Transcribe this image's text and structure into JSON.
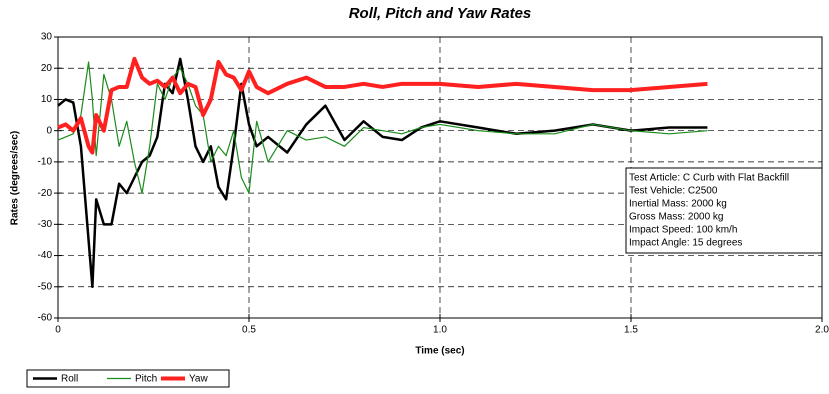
{
  "chart_data": {
    "type": "line",
    "title": "Roll, Pitch and Yaw Rates",
    "x_label": "Time (sec)",
    "y_label": "Rates (degrees/sec)",
    "x": [
      0,
      0.02,
      0.04,
      0.06,
      0.08,
      0.09,
      0.1,
      0.12,
      0.14,
      0.16,
      0.18,
      0.2,
      0.22,
      0.24,
      0.26,
      0.28,
      0.3,
      0.32,
      0.34,
      0.36,
      0.38,
      0.4,
      0.42,
      0.44,
      0.46,
      0.48,
      0.5,
      0.52,
      0.55,
      0.6,
      0.65,
      0.7,
      0.75,
      0.8,
      0.85,
      0.9,
      0.95,
      1.0,
      1.1,
      1.2,
      1.3,
      1.4,
      1.5,
      1.6,
      1.7
    ],
    "series": [
      {
        "name": "Roll",
        "color": "#000000",
        "width": 2.5,
        "values": [
          8,
          10,
          9,
          -5,
          -35,
          -50,
          -22,
          -30,
          -30,
          -17,
          -20,
          -15,
          -10,
          -8,
          -2,
          15,
          12,
          23,
          10,
          -5,
          -10,
          -5,
          -18,
          -22,
          -5,
          15,
          2,
          -5,
          -2,
          -7,
          2,
          8,
          -3,
          3,
          -2,
          -3,
          1,
          3,
          1,
          -1,
          0,
          2,
          0,
          1,
          1
        ]
      },
      {
        "name": "Pitch",
        "color": "#1a8c1a",
        "width": 1.2,
        "values": [
          -3,
          -2,
          -1,
          5,
          22,
          10,
          -8,
          18,
          10,
          -5,
          3,
          -10,
          -20,
          -5,
          15,
          10,
          17,
          20,
          15,
          8,
          5,
          -10,
          -5,
          -8,
          0,
          -15,
          -20,
          3,
          -10,
          0,
          -3,
          -2,
          -5,
          1,
          0,
          -1,
          1,
          2,
          0,
          -1,
          -1,
          2,
          0,
          -1,
          0
        ]
      },
      {
        "name": "Yaw",
        "color": "#ff2020",
        "width": 4,
        "values": [
          1,
          2,
          0,
          4,
          -5,
          -7,
          5,
          0,
          13,
          14,
          14,
          23,
          17,
          15,
          16,
          14,
          17,
          12,
          15,
          14,
          5,
          10,
          22,
          18,
          17,
          13,
          19,
          14,
          12,
          15,
          17,
          14,
          14,
          15,
          14,
          15,
          15,
          15,
          14,
          15,
          14,
          13,
          13,
          14,
          15
        ]
      }
    ],
    "xlim": [
      0,
      2
    ],
    "xticks": [
      0,
      0.5,
      {
        "value": 1,
        "label": "1.0"
      },
      1.5,
      {
        "value": 2,
        "label": "2.0"
      }
    ],
    "ylim": [
      -60,
      30
    ],
    "yticks": [
      -60,
      -50,
      -40,
      -30,
      -20,
      -10,
      0,
      10,
      20,
      30
    ],
    "grid": true,
    "annotation": [
      "Test Article: C Curb with Flat Backfill",
      "Test Vehicle: C2500",
      "Inertial Mass: 2000 kg",
      "Gross Mass: 2000 kg",
      "Impact Speed: 100 km/h",
      "Impact Angle: 15 degrees"
    ]
  }
}
